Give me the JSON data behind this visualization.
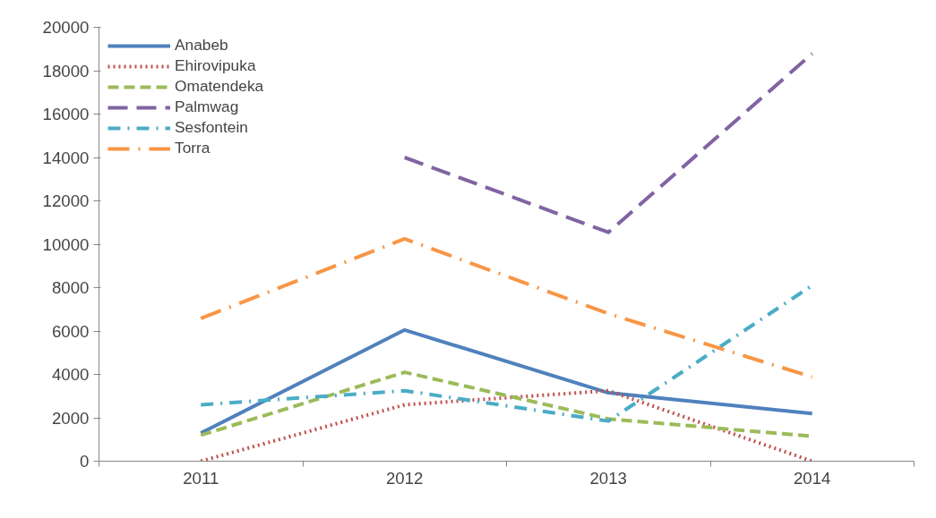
{
  "chart_data": {
    "type": "line",
    "categories": [
      "2011",
      "2012",
      "2013",
      "2014"
    ],
    "ylim": [
      0,
      20000
    ],
    "yticks": [
      0,
      2000,
      4000,
      6000,
      8000,
      10000,
      12000,
      14000,
      16000,
      18000,
      20000
    ],
    "grid": false,
    "legend": "top left",
    "series": [
      {
        "name": "Anabeb",
        "color": "#4f81bd",
        "line_style": "solid",
        "values": [
          1300,
          6050,
          3150,
          2200
        ]
      },
      {
        "name": "Ehirovipuka",
        "color": "#c0504d",
        "line_style": "dotted",
        "values": [
          0,
          2600,
          3250,
          0
        ]
      },
      {
        "name": "Omatendeka",
        "color": "#9bbb59",
        "line_style": "dashed",
        "values": [
          1200,
          4100,
          1950,
          1150
        ]
      },
      {
        "name": "Palmwag",
        "color": "#8064a2",
        "line_style": "longdash",
        "values": [
          null,
          14000,
          10550,
          18780
        ]
      },
      {
        "name": "Sesfontein",
        "color": "#4bacc6",
        "line_style": "dashdot",
        "values": [
          2600,
          3250,
          1850,
          8100
        ]
      },
      {
        "name": "Torra",
        "color": "#f79646",
        "line_style": "longdashdot",
        "values": [
          6580,
          10250,
          6800,
          3880
        ]
      }
    ]
  }
}
